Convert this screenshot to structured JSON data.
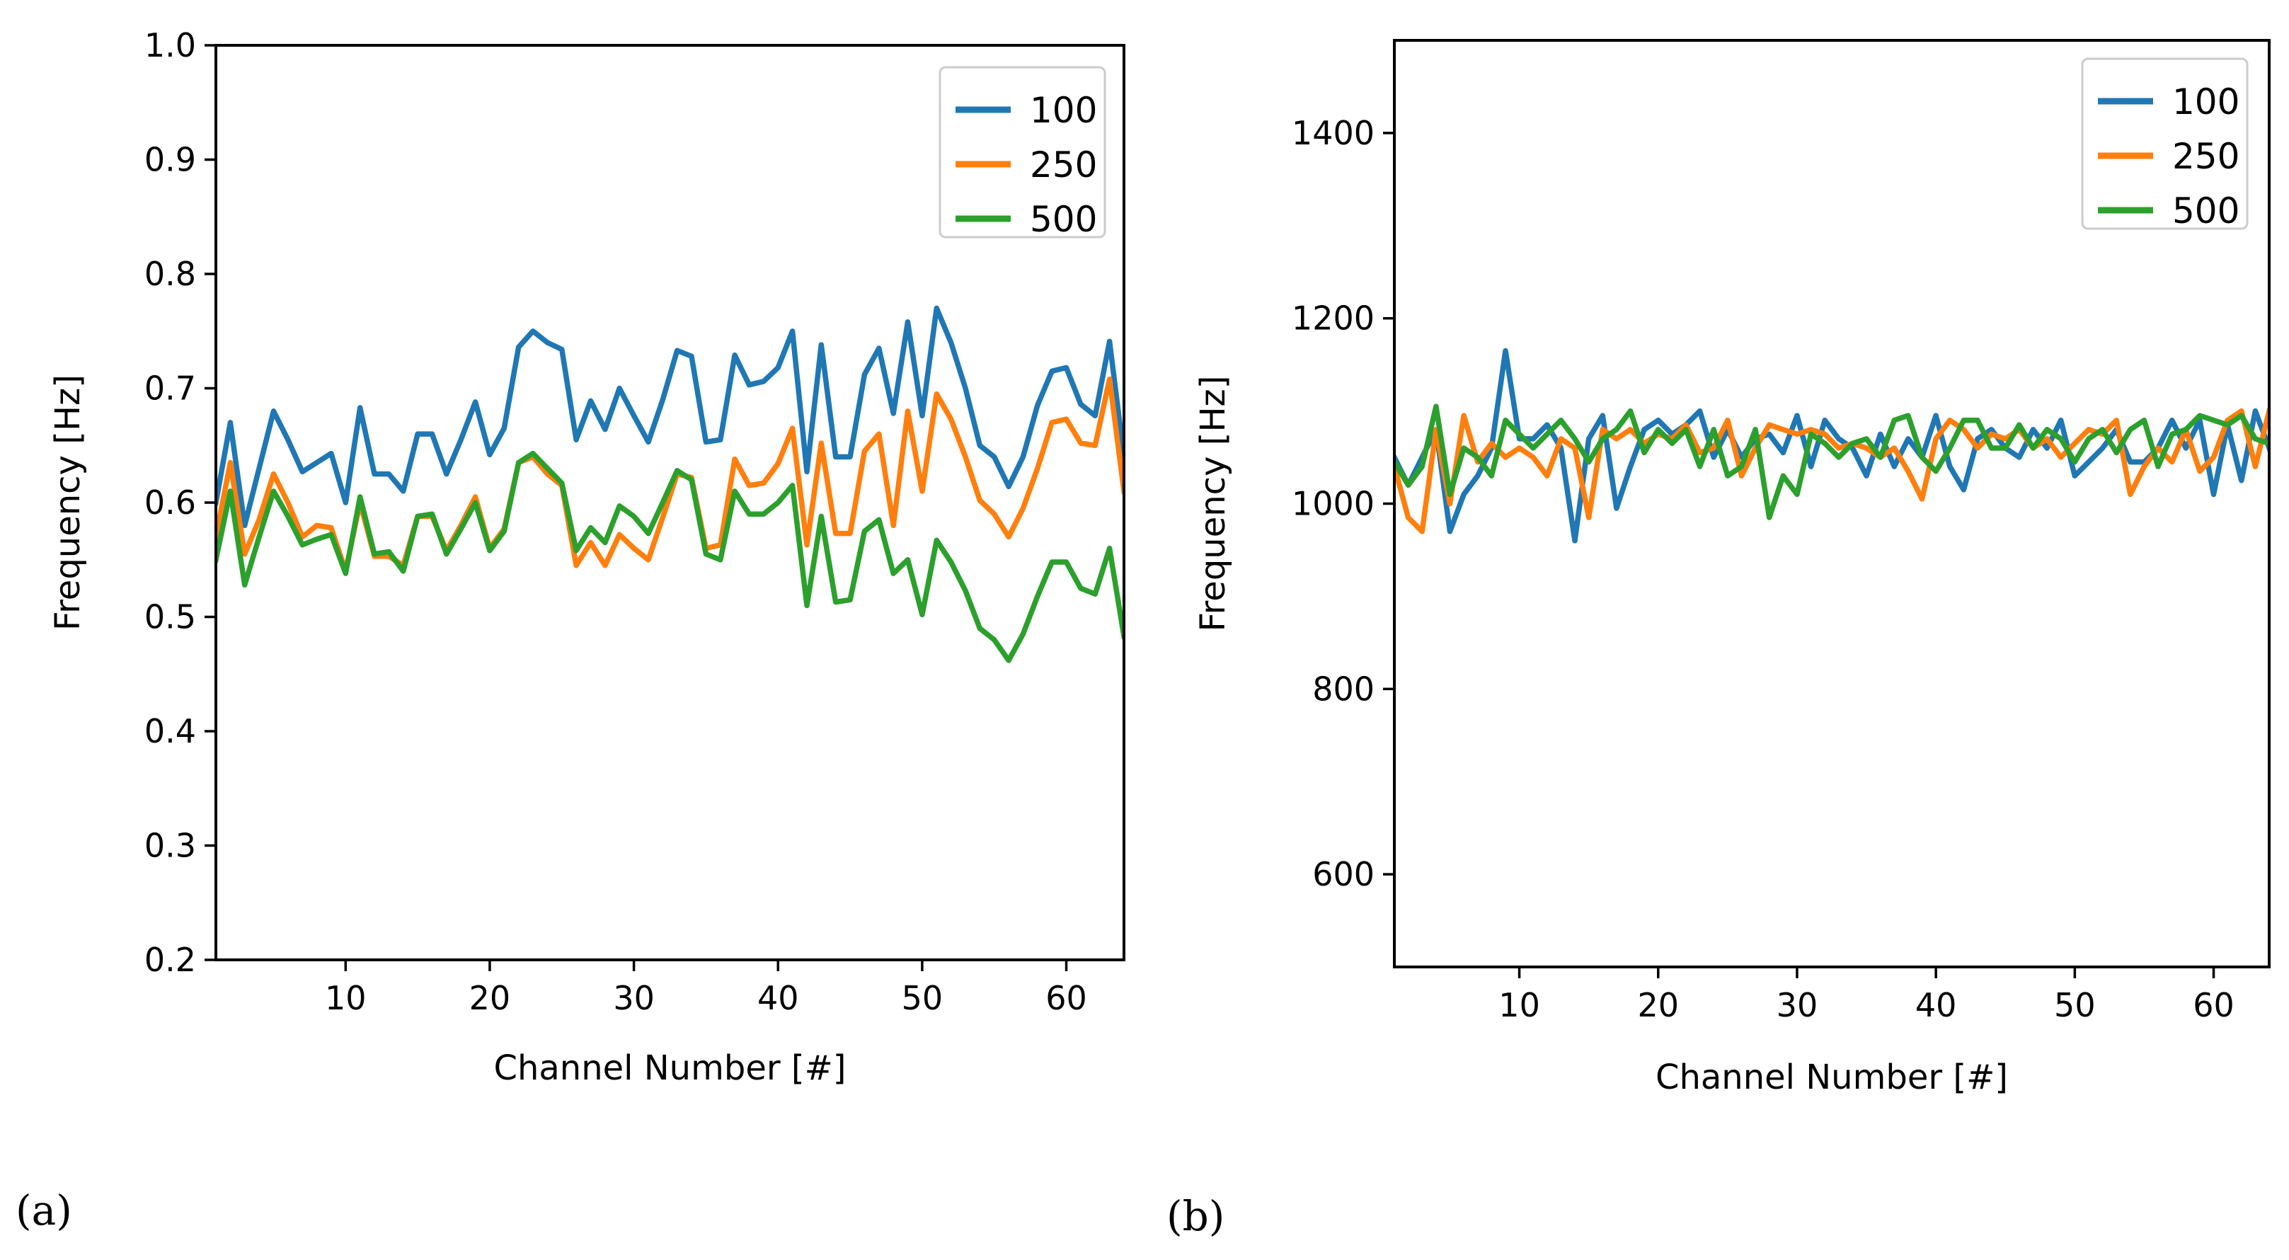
{
  "figure": {
    "panel_labels": [
      "(a)",
      "(b)"
    ]
  },
  "colors": {
    "100": "#1f77b4",
    "250": "#ff7f0e",
    "500": "#2ca02c"
  },
  "chart_data": [
    {
      "type": "line",
      "panel": "(a)",
      "title": "",
      "xlabel": "Channel Number [#]",
      "ylabel": "Frequency [Hz]",
      "xlim": [
        1,
        64
      ],
      "ylim": [
        0.2,
        1.0
      ],
      "xticks": [
        10,
        20,
        30,
        40,
        50,
        60
      ],
      "yticks": [
        0.2,
        0.3,
        0.4,
        0.5,
        0.6,
        0.7,
        0.8,
        0.9,
        1.0
      ],
      "ytick_labels": [
        "0.2",
        "0.3",
        "0.4",
        "0.5",
        "0.6",
        "0.7",
        "0.8",
        "0.9",
        "1.0"
      ],
      "grid": false,
      "legend_position": "top-right",
      "x": [
        1,
        2,
        3,
        4,
        5,
        6,
        7,
        8,
        9,
        10,
        11,
        12,
        13,
        14,
        15,
        16,
        17,
        18,
        19,
        20,
        21,
        22,
        23,
        24,
        25,
        26,
        27,
        28,
        29,
        30,
        31,
        32,
        33,
        34,
        35,
        36,
        37,
        38,
        39,
        40,
        41,
        42,
        43,
        44,
        45,
        46,
        47,
        48,
        49,
        50,
        51,
        52,
        53,
        54,
        55,
        56,
        57,
        58,
        59,
        60,
        61,
        62,
        63,
        64
      ],
      "series": [
        {
          "name": "100",
          "values": [
            0.6,
            0.67,
            0.58,
            0.63,
            0.68,
            0.655,
            0.627,
            0.635,
            0.643,
            0.6,
            0.683,
            0.625,
            0.625,
            0.61,
            0.66,
            0.66,
            0.625,
            0.655,
            0.688,
            0.642,
            0.665,
            0.736,
            0.75,
            0.74,
            0.734,
            0.655,
            0.689,
            0.664,
            0.7,
            0.676,
            0.653,
            0.69,
            0.733,
            0.728,
            0.653,
            0.655,
            0.729,
            0.703,
            0.706,
            0.718,
            0.75,
            0.627,
            0.738,
            0.64,
            0.64,
            0.712,
            0.735,
            0.678,
            0.758,
            0.676,
            0.77,
            0.74,
            0.7,
            0.65,
            0.64,
            0.614,
            0.64,
            0.685,
            0.715,
            0.718,
            0.686,
            0.676,
            0.741,
            0.64
          ]
        },
        {
          "name": "250",
          "values": [
            0.57,
            0.635,
            0.555,
            0.585,
            0.625,
            0.6,
            0.57,
            0.58,
            0.578,
            0.54,
            0.6,
            0.553,
            0.553,
            0.545,
            0.588,
            0.588,
            0.558,
            0.58,
            0.605,
            0.56,
            0.577,
            0.635,
            0.64,
            0.625,
            0.615,
            0.545,
            0.565,
            0.545,
            0.572,
            0.56,
            0.55,
            0.587,
            0.625,
            0.622,
            0.56,
            0.563,
            0.638,
            0.615,
            0.617,
            0.634,
            0.665,
            0.563,
            0.652,
            0.573,
            0.573,
            0.645,
            0.66,
            0.58,
            0.68,
            0.61,
            0.695,
            0.673,
            0.64,
            0.602,
            0.59,
            0.57,
            0.595,
            0.63,
            0.67,
            0.673,
            0.652,
            0.65,
            0.708,
            0.61
          ]
        },
        {
          "name": "500",
          "values": [
            0.55,
            0.61,
            0.528,
            0.57,
            0.61,
            0.588,
            0.563,
            0.568,
            0.572,
            0.538,
            0.605,
            0.555,
            0.557,
            0.54,
            0.588,
            0.59,
            0.555,
            0.577,
            0.6,
            0.558,
            0.575,
            0.635,
            0.643,
            0.63,
            0.617,
            0.558,
            0.578,
            0.565,
            0.597,
            0.588,
            0.573,
            0.6,
            0.628,
            0.62,
            0.555,
            0.55,
            0.61,
            0.59,
            0.59,
            0.6,
            0.615,
            0.51,
            0.588,
            0.513,
            0.515,
            0.575,
            0.585,
            0.538,
            0.55,
            0.502,
            0.567,
            0.548,
            0.523,
            0.49,
            0.48,
            0.462,
            0.485,
            0.518,
            0.548,
            0.548,
            0.525,
            0.52,
            0.56,
            0.483
          ]
        }
      ]
    },
    {
      "type": "line",
      "panel": "(b)",
      "title": "",
      "xlabel": "Channel Number [#]",
      "ylabel": "Frequency [Hz]",
      "xlim": [
        1,
        64
      ],
      "ylim": [
        500,
        1500
      ],
      "xticks": [
        10,
        20,
        30,
        40,
        50,
        60
      ],
      "yticks": [
        600,
        800,
        1000,
        1200,
        1400
      ],
      "ytick_labels": [
        "600",
        "800",
        "1000",
        "1200",
        "1400"
      ],
      "grid": false,
      "legend_position": "top-right",
      "x": [
        1,
        2,
        3,
        4,
        5,
        6,
        7,
        8,
        9,
        10,
        11,
        12,
        13,
        14,
        15,
        16,
        17,
        18,
        19,
        20,
        21,
        22,
        23,
        24,
        25,
        26,
        27,
        28,
        29,
        30,
        31,
        32,
        33,
        34,
        35,
        36,
        37,
        38,
        39,
        40,
        41,
        42,
        43,
        44,
        45,
        46,
        47,
        48,
        49,
        50,
        51,
        52,
        53,
        54,
        55,
        56,
        57,
        58,
        59,
        60,
        61,
        62,
        63,
        64
      ],
      "series": [
        {
          "name": "100",
          "values": [
            1050,
            1020,
            1050,
            1080,
            970,
            1010,
            1030,
            1060,
            1165,
            1070,
            1070,
            1085,
            1060,
            960,
            1070,
            1095,
            995,
            1040,
            1080,
            1090,
            1075,
            1085,
            1100,
            1050,
            1080,
            1050,
            1070,
            1075,
            1055,
            1095,
            1040,
            1090,
            1070,
            1060,
            1030,
            1075,
            1040,
            1070,
            1050,
            1095,
            1040,
            1015,
            1070,
            1080,
            1060,
            1050,
            1080,
            1060,
            1090,
            1030,
            1045,
            1060,
            1080,
            1045,
            1045,
            1060,
            1090,
            1060,
            1090,
            1010,
            1085,
            1025,
            1100,
            1060
          ]
        },
        {
          "name": "250",
          "values": [
            1040,
            985,
            970,
            1080,
            1000,
            1095,
            1045,
            1065,
            1050,
            1060,
            1050,
            1030,
            1070,
            1060,
            985,
            1080,
            1070,
            1080,
            1065,
            1075,
            1070,
            1085,
            1055,
            1060,
            1090,
            1030,
            1060,
            1085,
            1080,
            1075,
            1080,
            1075,
            1060,
            1065,
            1060,
            1050,
            1060,
            1035,
            1005,
            1070,
            1090,
            1080,
            1060,
            1075,
            1070,
            1080,
            1060,
            1070,
            1050,
            1065,
            1080,
            1075,
            1090,
            1010,
            1040,
            1060,
            1045,
            1080,
            1035,
            1050,
            1090,
            1100,
            1040,
            1100
          ]
        },
        {
          "name": "500",
          "values": [
            1045,
            1020,
            1040,
            1105,
            1010,
            1060,
            1050,
            1030,
            1090,
            1075,
            1060,
            1075,
            1090,
            1070,
            1045,
            1070,
            1080,
            1100,
            1055,
            1080,
            1065,
            1080,
            1040,
            1080,
            1030,
            1040,
            1080,
            985,
            1030,
            1010,
            1075,
            1065,
            1050,
            1065,
            1070,
            1050,
            1090,
            1095,
            1050,
            1035,
            1060,
            1090,
            1090,
            1060,
            1060,
            1085,
            1060,
            1080,
            1070,
            1045,
            1070,
            1080,
            1055,
            1080,
            1090,
            1040,
            1075,
            1080,
            1095,
            1090,
            1085,
            1095,
            1070,
            1065
          ]
        }
      ]
    }
  ]
}
